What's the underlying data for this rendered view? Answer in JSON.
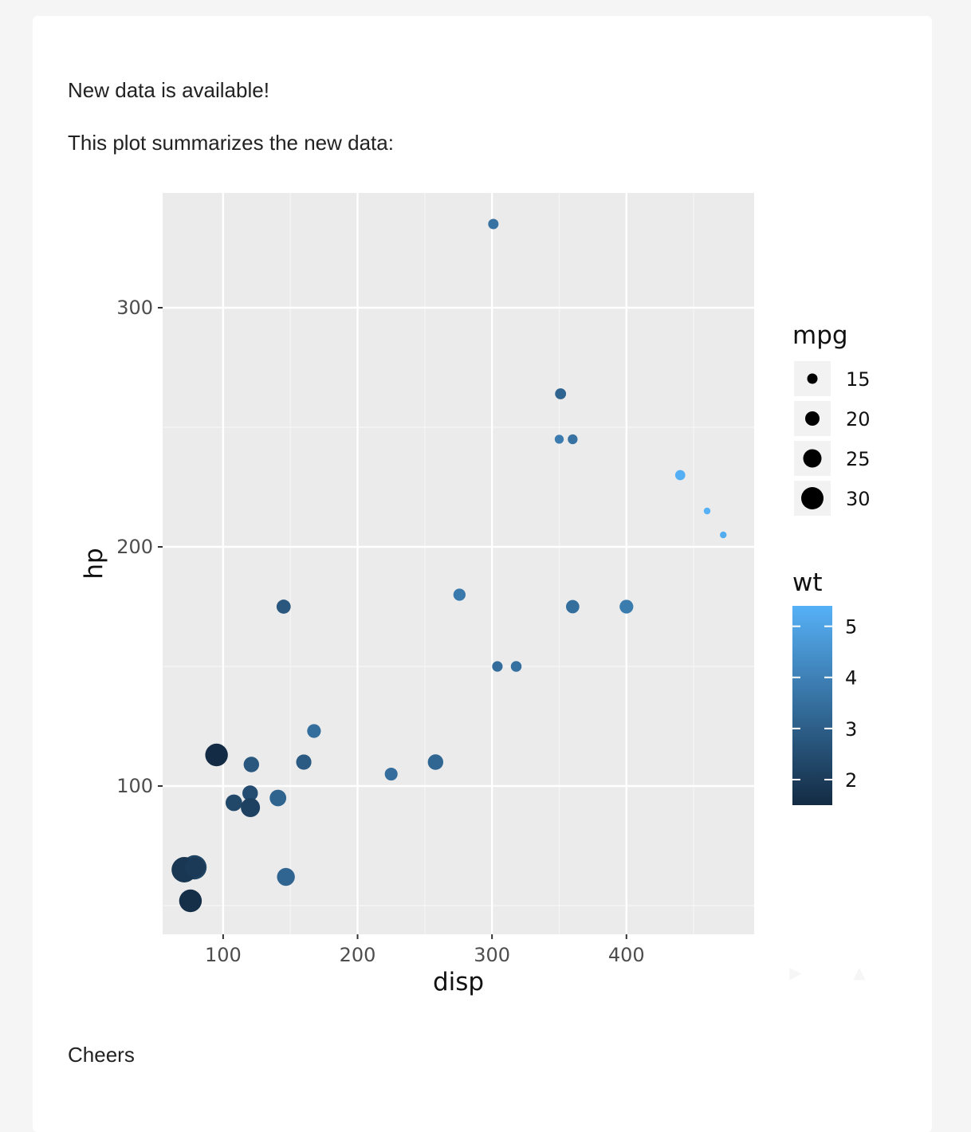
{
  "email": {
    "line1": "New data is available!",
    "line2": "This plot summarizes the new data:",
    "closing": "Cheers"
  },
  "colors": {
    "page_bg": "#f5f5f5",
    "card_bg": "#ffffff",
    "panel_bg": "#ebebeb",
    "grid_major": "#ffffff",
    "gradient_low": "#132b43",
    "gradient_high": "#56b1f7",
    "text": "#222222",
    "axis_text": "#4d4d4d"
  },
  "icons": {
    "play": "play-icon",
    "up": "arrow-up-icon"
  },
  "chart_data": {
    "type": "scatter",
    "title": "",
    "xlabel": "disp",
    "ylabel": "hp",
    "xlim": [
      55,
      495
    ],
    "ylim": [
      38,
      348
    ],
    "xticks": [
      100,
      200,
      300,
      400
    ],
    "yticks": [
      100,
      200,
      300
    ],
    "grid": true,
    "legend_position": "right",
    "size_legend": {
      "title": "mpg",
      "entries": [
        15,
        20,
        25,
        30
      ]
    },
    "color_legend": {
      "title": "wt",
      "low": 1.5,
      "high": 5.4,
      "ticks": [
        2,
        3,
        4,
        5
      ]
    },
    "points": [
      {
        "x": 160.0,
        "y": 110,
        "mpg": 21.0,
        "wt": 2.62
      },
      {
        "x": 160.0,
        "y": 110,
        "mpg": 21.0,
        "wt": 2.875
      },
      {
        "x": 108.0,
        "y": 93,
        "mpg": 22.8,
        "wt": 2.32
      },
      {
        "x": 258.0,
        "y": 110,
        "mpg": 21.4,
        "wt": 3.215
      },
      {
        "x": 360.0,
        "y": 175,
        "mpg": 18.7,
        "wt": 3.44
      },
      {
        "x": 225.0,
        "y": 105,
        "mpg": 18.1,
        "wt": 3.46
      },
      {
        "x": 360.0,
        "y": 245,
        "mpg": 14.3,
        "wt": 3.57
      },
      {
        "x": 146.7,
        "y": 62,
        "mpg": 24.4,
        "wt": 3.19
      },
      {
        "x": 140.8,
        "y": 95,
        "mpg": 22.8,
        "wt": 3.15
      },
      {
        "x": 167.6,
        "y": 123,
        "mpg": 19.2,
        "wt": 3.44
      },
      {
        "x": 167.6,
        "y": 123,
        "mpg": 17.8,
        "wt": 3.44
      },
      {
        "x": 275.8,
        "y": 180,
        "mpg": 16.4,
        "wt": 4.07
      },
      {
        "x": 275.8,
        "y": 180,
        "mpg": 17.3,
        "wt": 3.73
      },
      {
        "x": 275.8,
        "y": 180,
        "mpg": 15.2,
        "wt": 3.78
      },
      {
        "x": 472.0,
        "y": 205,
        "mpg": 10.4,
        "wt": 5.25
      },
      {
        "x": 460.0,
        "y": 215,
        "mpg": 10.4,
        "wt": 5.424
      },
      {
        "x": 440.0,
        "y": 230,
        "mpg": 14.7,
        "wt": 5.345
      },
      {
        "x": 78.7,
        "y": 66,
        "mpg": 32.4,
        "wt": 2.2
      },
      {
        "x": 75.7,
        "y": 52,
        "mpg": 30.4,
        "wt": 1.615
      },
      {
        "x": 71.1,
        "y": 65,
        "mpg": 33.9,
        "wt": 1.835
      },
      {
        "x": 120.1,
        "y": 97,
        "mpg": 21.5,
        "wt": 2.465
      },
      {
        "x": 318.0,
        "y": 150,
        "mpg": 15.5,
        "wt": 3.52
      },
      {
        "x": 304.0,
        "y": 150,
        "mpg": 15.2,
        "wt": 3.435
      },
      {
        "x": 350.0,
        "y": 245,
        "mpg": 13.3,
        "wt": 3.84
      },
      {
        "x": 400.0,
        "y": 175,
        "mpg": 19.2,
        "wt": 3.845
      },
      {
        "x": 79.0,
        "y": 66,
        "mpg": 27.3,
        "wt": 1.935
      },
      {
        "x": 120.3,
        "y": 91,
        "mpg": 26.0,
        "wt": 2.14
      },
      {
        "x": 95.1,
        "y": 113,
        "mpg": 30.4,
        "wt": 1.513
      },
      {
        "x": 351.0,
        "y": 264,
        "mpg": 15.8,
        "wt": 3.17
      },
      {
        "x": 145.0,
        "y": 175,
        "mpg": 19.7,
        "wt": 2.77
      },
      {
        "x": 301.0,
        "y": 335,
        "mpg": 15.0,
        "wt": 3.57
      },
      {
        "x": 121.0,
        "y": 109,
        "mpg": 21.4,
        "wt": 2.78
      }
    ]
  }
}
